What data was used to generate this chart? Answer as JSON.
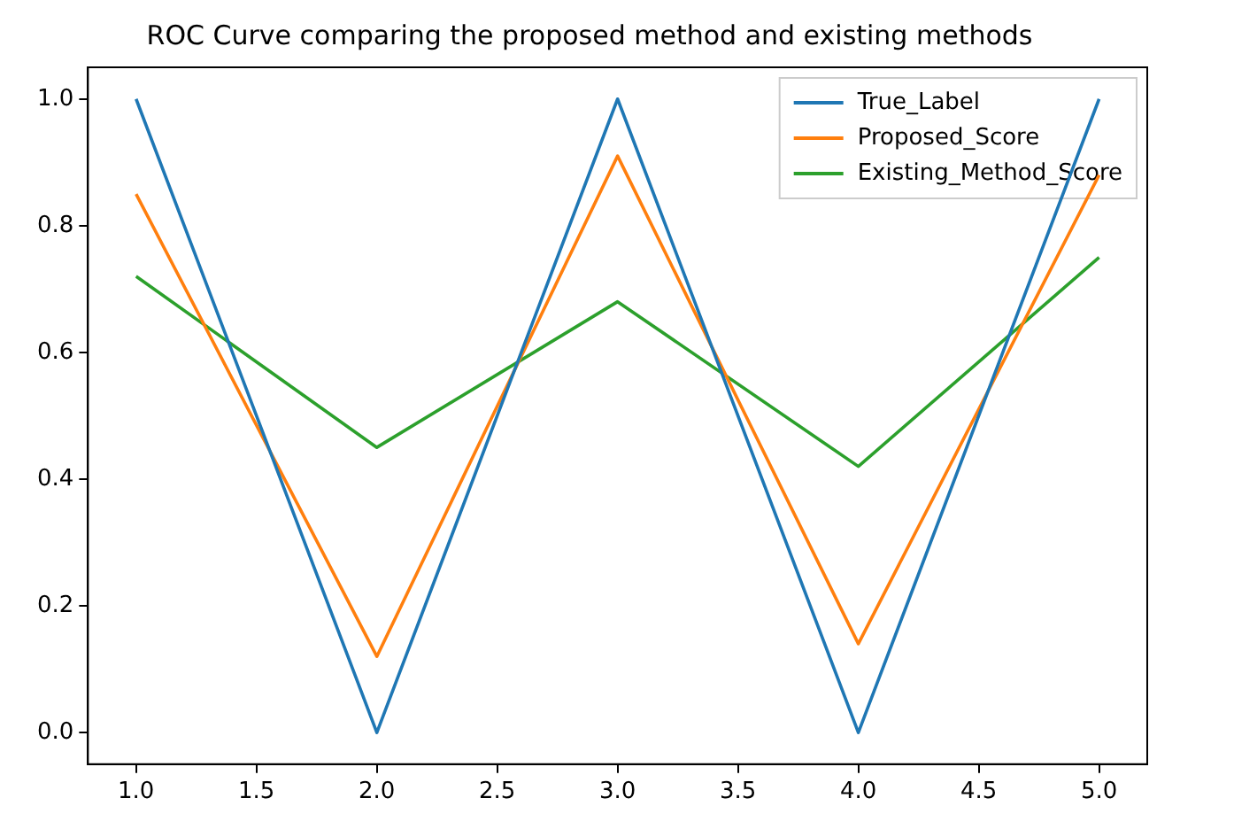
{
  "chart_data": {
    "type": "line",
    "title": "ROC Curve comparing the proposed method and existing methods",
    "x": [
      1,
      2,
      3,
      4,
      5
    ],
    "series": [
      {
        "name": "True_Label",
        "color": "#1f77b4",
        "values": [
          1,
          0,
          1,
          0,
          1
        ]
      },
      {
        "name": "Proposed_Score",
        "color": "#ff7f0e",
        "values": [
          0.85,
          0.12,
          0.91,
          0.14,
          0.88
        ]
      },
      {
        "name": "Existing_Method_Score",
        "color": "#2ca02c",
        "values": [
          0.72,
          0.45,
          0.68,
          0.42,
          0.75
        ]
      }
    ],
    "xlim": [
      0.8,
      5.2
    ],
    "xticks": [
      {
        "value": 1,
        "label": "1.0"
      },
      {
        "value": 1.5,
        "label": "1.5"
      },
      {
        "value": 2,
        "label": "2.0"
      },
      {
        "value": 2.5,
        "label": "2.5"
      },
      {
        "value": 3,
        "label": "3.0"
      },
      {
        "value": 3.5,
        "label": "3.5"
      },
      {
        "value": 4,
        "label": "4.0"
      },
      {
        "value": 4.5,
        "label": "4.5"
      },
      {
        "value": 5,
        "label": "5.0"
      }
    ],
    "ylim": [
      -0.05,
      1.05
    ],
    "yticks": [
      {
        "value": 0,
        "label": "0.0"
      },
      {
        "value": 0.2,
        "label": "0.2"
      },
      {
        "value": 0.4,
        "label": "0.4"
      },
      {
        "value": 0.6,
        "label": "0.6"
      },
      {
        "value": 0.8,
        "label": "0.8"
      },
      {
        "value": 1,
        "label": "1.0"
      }
    ],
    "grid": false,
    "legend": "top right",
    "marker": "none",
    "line_style": "solid"
  }
}
